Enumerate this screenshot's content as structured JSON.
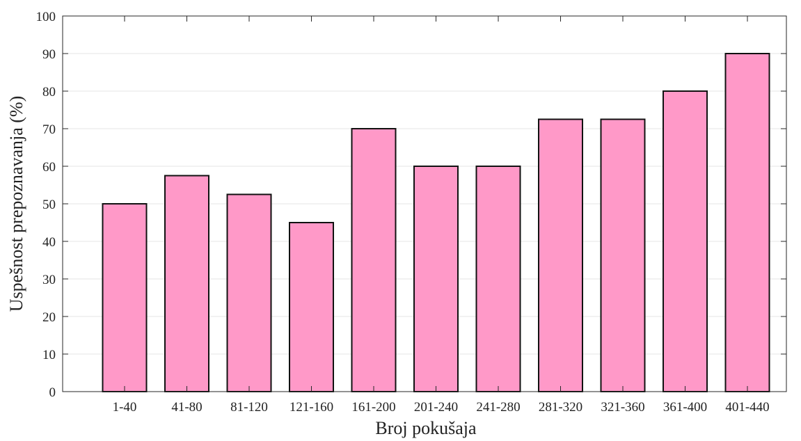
{
  "chart_data": {
    "type": "bar",
    "categories": [
      "1-40",
      "41-80",
      "81-120",
      "121-160",
      "161-200",
      "201-240",
      "241-280",
      "281-320",
      "321-360",
      "361-400",
      "401-440"
    ],
    "values": [
      50,
      57.5,
      52.5,
      45,
      70,
      60,
      60,
      72.5,
      72.5,
      80,
      90
    ],
    "title": "",
    "xlabel": "Broj pokušaja",
    "ylabel": "Uspešnost prepoznavanja (%)",
    "ylim": [
      0,
      100
    ],
    "yticks": [
      0,
      10,
      20,
      30,
      40,
      50,
      60,
      70,
      80,
      90,
      100
    ],
    "grid": "horizontal",
    "bar_color": "#ff99c8",
    "edge_color": "#111111"
  }
}
